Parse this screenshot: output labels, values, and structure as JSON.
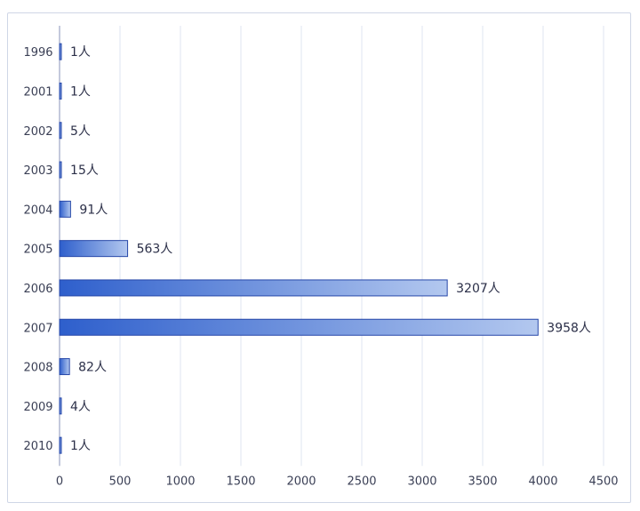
{
  "chart_data": {
    "type": "bar",
    "orientation": "horizontal",
    "categories": [
      "1996",
      "2001",
      "2002",
      "2003",
      "2004",
      "2005",
      "2006",
      "2007",
      "2008",
      "2009",
      "2010"
    ],
    "values": [
      1,
      1,
      5,
      15,
      91,
      563,
      3207,
      3958,
      82,
      4,
      1
    ],
    "data_labels": [
      "1人",
      "1人",
      "5人",
      "15人",
      "91人",
      "563人",
      "3207人",
      "3958人",
      "82人",
      "4人",
      "1人"
    ],
    "x_ticks": [
      "0",
      "500",
      "1000",
      "1500",
      "2000",
      "2500",
      "3000",
      "3500",
      "4000",
      "4500"
    ],
    "xlim": [
      0,
      4500
    ],
    "grid": true,
    "colors": {
      "bar_dark": "#2e5fcc",
      "bar_light": "#b3c8ef",
      "bar_stroke": "#2647a8",
      "grid": "#dfe4f1",
      "axis": "#8a93b8"
    }
  }
}
